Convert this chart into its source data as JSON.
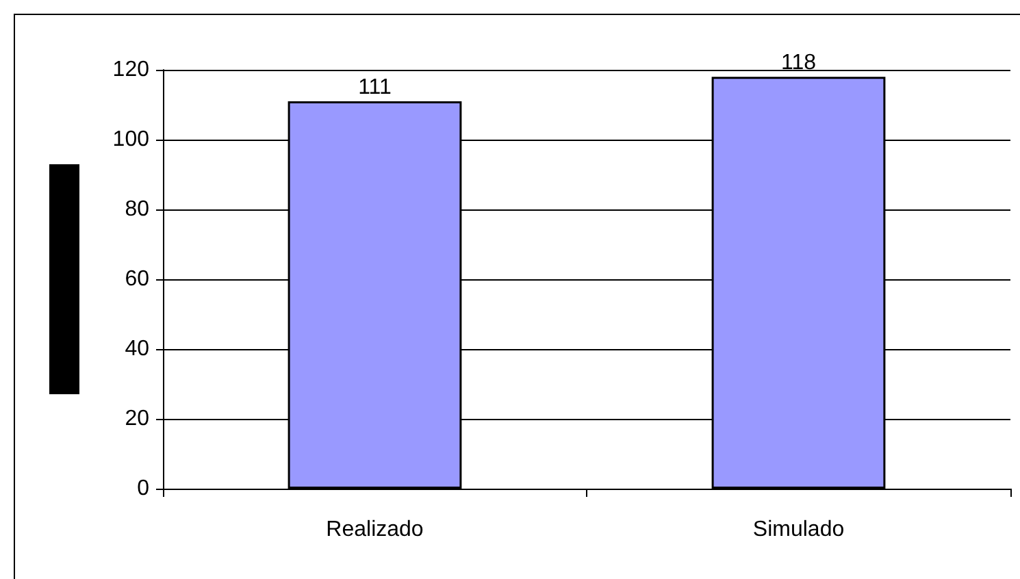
{
  "chart_data": {
    "type": "bar",
    "categories": [
      "Realizado",
      "Simulado"
    ],
    "values": [
      111,
      118
    ],
    "color": "#9999ff",
    "ylim": [
      0,
      120
    ],
    "yticks": [
      0,
      20,
      40,
      60,
      80,
      100,
      120
    ],
    "grid": "y",
    "data_labels": true
  }
}
